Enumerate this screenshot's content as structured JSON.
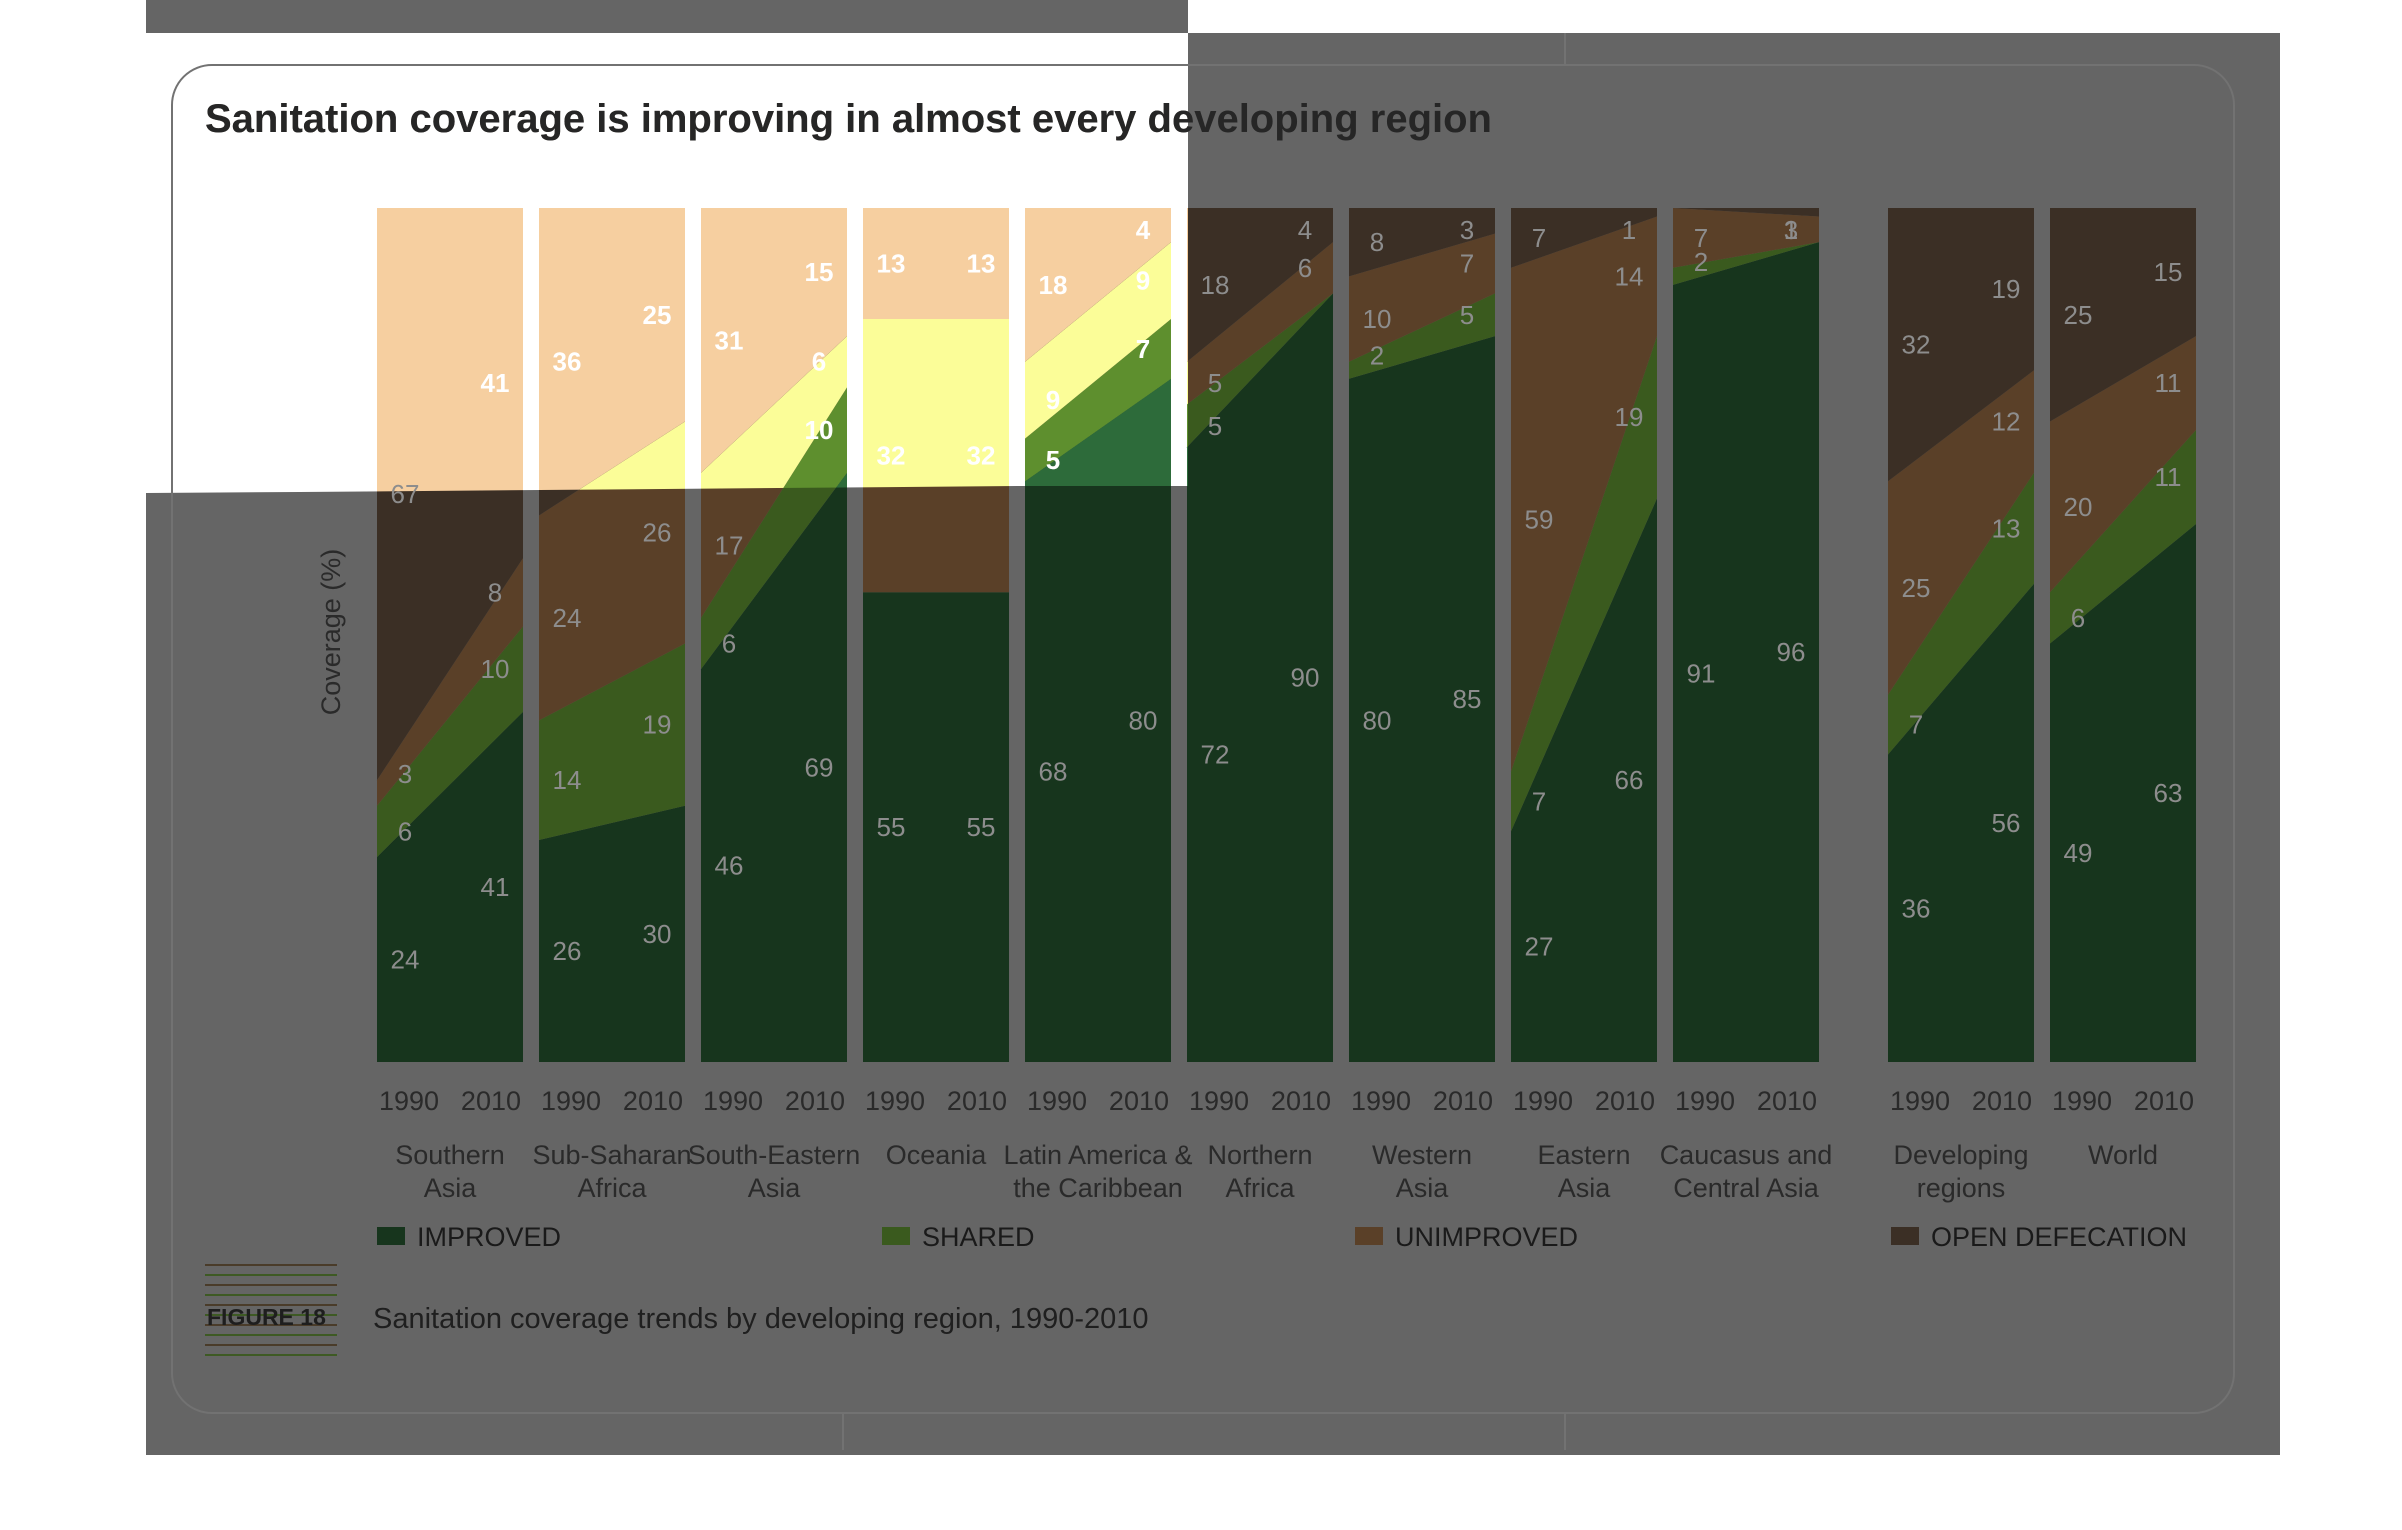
{
  "title": "Sanitation coverage is improving in almost every developing region",
  "caption": {
    "figure_label": "FIGURE 18",
    "text": "Sanitation coverage trends by developing region, 1990-2010"
  },
  "colors": {
    "improved": "#17351d",
    "shared": "#3a5a1e",
    "unimproved": "#5a4028",
    "open_defecation": "#3b2f25",
    "background_overlay": "#656565",
    "highlight_peach": "#f6cfa0",
    "highlight_yellow": "#fbfd98",
    "label_on_dark": "#8d8d8d",
    "label_on_light": "#ffffff",
    "axis_text": "#2a2a2a"
  },
  "chart_data": {
    "type": "area",
    "ylabel": "Coverage (%)",
    "ylim": [
      0,
      100
    ],
    "stack_order": [
      "improved",
      "shared",
      "unimproved",
      "open_defecation"
    ],
    "series_names": {
      "improved": "IMPROVED",
      "shared": "SHARED",
      "unimproved": "UNIMPROVED",
      "open_defecation": "OPEN DEFECATION"
    },
    "legend": [
      "IMPROVED",
      "SHARED",
      "UNIMPROVED",
      "OPEN DEFECATION"
    ],
    "legend_position": "bottom",
    "years": [
      "1990",
      "2010"
    ],
    "regions": [
      {
        "name": "Southern\nAsia",
        "group": 1,
        "y1990": {
          "improved": 24,
          "shared": 6,
          "unimproved": 3,
          "open_defecation": 67
        },
        "y2010": {
          "improved": 41,
          "shared": 10,
          "unimproved": 8,
          "open_defecation": 41
        }
      },
      {
        "name": "Sub-Saharan\nAfrica",
        "group": 1,
        "y1990": {
          "improved": 26,
          "shared": 14,
          "unimproved": 24,
          "open_defecation": 36
        },
        "y2010": {
          "improved": 30,
          "shared": 19,
          "unimproved": 26,
          "open_defecation": 25
        }
      },
      {
        "name": "South-Eastern\nAsia",
        "group": 1,
        "y1990": {
          "improved": 46,
          "shared": 6,
          "unimproved": 17,
          "open_defecation": 31
        },
        "y2010": {
          "improved": 69,
          "shared": 10,
          "unimproved": 6,
          "open_defecation": 15
        }
      },
      {
        "name": "Oceania",
        "group": 1,
        "y1990": {
          "improved": 55,
          "shared": null,
          "unimproved": 32,
          "open_defecation": 13
        },
        "y2010": {
          "improved": 55,
          "shared": null,
          "unimproved": 32,
          "open_defecation": 13
        }
      },
      {
        "name": "Latin America &\nthe Caribbean",
        "group": 1,
        "y1990": {
          "improved": 68,
          "shared": 5,
          "unimproved": 9,
          "open_defecation": 18
        },
        "y2010": {
          "improved": 80,
          "shared": 7,
          "unimproved": 9,
          "open_defecation": 4
        }
      },
      {
        "name": "Northern\nAfrica",
        "group": 1,
        "y1990": {
          "improved": 72,
          "shared": 5,
          "unimproved": 5,
          "open_defecation": 18
        },
        "y2010": {
          "improved": 90,
          "shared": null,
          "unimproved": 6,
          "open_defecation": 4
        }
      },
      {
        "name": "Western\nAsia",
        "group": 1,
        "y1990": {
          "improved": 80,
          "shared": 2,
          "unimproved": 10,
          "open_defecation": 8
        },
        "y2010": {
          "improved": 85,
          "shared": 5,
          "unimproved": 7,
          "open_defecation": 3
        }
      },
      {
        "name": "Eastern\nAsia",
        "group": 1,
        "y1990": {
          "improved": 27,
          "shared": 7,
          "unimproved": 59,
          "open_defecation": 7
        },
        "y2010": {
          "improved": 66,
          "shared": 19,
          "unimproved": 14,
          "open_defecation": 1
        }
      },
      {
        "name": "Caucasus and\nCentral Asia",
        "group": 1,
        "y1990": {
          "improved": 91,
          "shared": 2,
          "unimproved": 7,
          "open_defecation": null
        },
        "y2010": {
          "improved": 96,
          "shared": null,
          "unimproved": 3,
          "open_defecation": 1
        }
      },
      {
        "name": "Developing\nregions",
        "group": 2,
        "y1990": {
          "improved": 36,
          "shared": 7,
          "unimproved": 25,
          "open_defecation": 32
        },
        "y2010": {
          "improved": 56,
          "shared": 13,
          "unimproved": 12,
          "open_defecation": 19
        }
      },
      {
        "name": "World",
        "group": 2,
        "y1990": {
          "improved": 49,
          "shared": 6,
          "unimproved": 20,
          "open_defecation": 25
        },
        "y2010": {
          "improved": 63,
          "shared": 11,
          "unimproved": 11,
          "open_defecation": 15
        }
      }
    ]
  }
}
